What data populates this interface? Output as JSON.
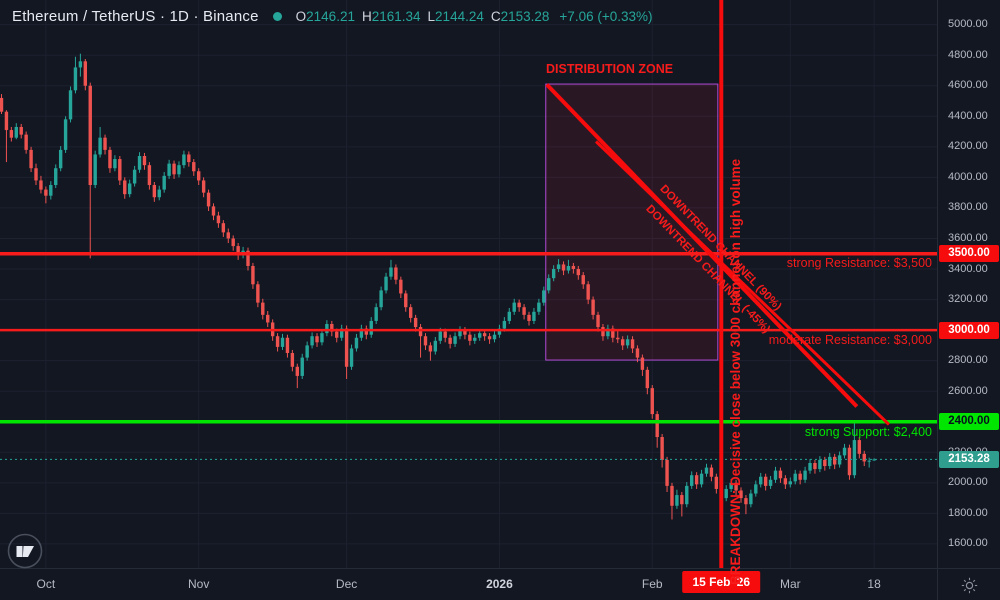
{
  "header": {
    "title": "Ethereum / TetherUS · 1D · Binance",
    "ohlc": [
      {
        "label": "O",
        "value": "2146.21"
      },
      {
        "label": "H",
        "value": "2161.34"
      },
      {
        "label": "L",
        "value": "2144.24"
      },
      {
        "label": "C",
        "value": "2153.28"
      }
    ],
    "change": "+7.06 (+0.33%)"
  },
  "colors": {
    "background": "#131722",
    "grid": "#1d2130",
    "axis_text": "#b6bac5",
    "candle_up": "#26a69a",
    "candle_down": "#ef5350",
    "annotation_red": "#f60c0c",
    "annotation_green": "#00e600",
    "zone_border": "#b24bd6",
    "zone_fill": "rgba(246,30,60,0.10)",
    "current_price_line": "#26a69a",
    "current_price_badge": "#2f9e8f"
  },
  "price_axis": {
    "ticks": [
      "5000.00",
      "4800.00",
      "4600.00",
      "4400.00",
      "4200.00",
      "4000.00",
      "3800.00",
      "3600.00",
      "3400.00",
      "3200.00",
      "3000.00",
      "2800.00",
      "2600.00",
      "2400.00",
      "2200.00",
      "2000.00",
      "1800.00",
      "1600.00"
    ],
    "tick_values": [
      5000,
      4800,
      4600,
      4400,
      4200,
      4000,
      3800,
      3600,
      3400,
      3200,
      3000,
      2800,
      2600,
      2400,
      2200,
      2000,
      1800,
      1600
    ],
    "badges": [
      {
        "text": "3500.00",
        "value": 3500,
        "bg": "#f60c0c",
        "fg": "#ffffff"
      },
      {
        "text": "3000.00",
        "value": 3000,
        "bg": "#f60c0c",
        "fg": "#ffffff"
      },
      {
        "text": "2400.00",
        "value": 2400,
        "bg": "#00e600",
        "fg": "#07101c"
      },
      {
        "text": "2153.28",
        "value": 2153.28,
        "bg": "#2f9e8f",
        "fg": "#ffffff"
      }
    ]
  },
  "time_axis": {
    "labels": [
      {
        "text": "Oct",
        "day_index": 9,
        "bold": false
      },
      {
        "text": "Nov",
        "day_index": 40,
        "bold": false
      },
      {
        "text": "Dec",
        "day_index": 70,
        "bold": false
      },
      {
        "text": "2026",
        "day_index": 101,
        "bold": true
      },
      {
        "text": "Feb",
        "day_index": 132,
        "bold": false
      },
      {
        "text": "Mar",
        "day_index": 160,
        "bold": false
      },
      {
        "text": "18",
        "day_index": 177,
        "bold": false
      }
    ],
    "date_badge": {
      "text": "15 Feb '26",
      "day_index": 146
    }
  },
  "corner": {
    "theme_icon": "sun-icon"
  },
  "annotations": {
    "zone_label": "DISTRIBUTION ZONE",
    "channel_labels": [
      "DOWNTREND CHANNEL (90%)",
      "DOWNTREND CHANNEL (-45%)"
    ],
    "breakdown_label": "BREAKDOWN: Decisive close below 3000 channel on high volume",
    "levels": [
      {
        "text": "strong Resistance: $3,500",
        "value": 3500,
        "color": "#f71b1b",
        "weight": 3.5
      },
      {
        "text": "moderate Resistance: $3,000",
        "value": 3000,
        "color": "#f71b1b",
        "weight": 2.5
      },
      {
        "text": "strong Support: $2,400",
        "value": 2400,
        "color": "#00e600",
        "weight": 3.5
      }
    ]
  },
  "chart_data": {
    "type": "candlestick",
    "title": "Ethereum / TetherUS · 1D · Binance",
    "symbol": "Ethereum / TetherUS",
    "interval": "1D",
    "exchange": "Binance",
    "ylim": [
      1460,
      5160
    ],
    "y_ticks": [
      1600,
      1800,
      2000,
      2200,
      2400,
      2600,
      2800,
      3000,
      3200,
      3400,
      3600,
      3800,
      4000,
      4200,
      4400,
      4600,
      4800,
      5000
    ],
    "x_labels": [
      "Oct",
      "Nov",
      "Dec",
      "2026",
      "Feb",
      "Mar",
      "18"
    ],
    "grid": true,
    "current_price": 2153.28,
    "levels": {
      "resistance_strong": 3500,
      "resistance_moderate": 3000,
      "support_strong": 2400
    },
    "vertical_event_line": {
      "label": "15 Feb '26",
      "day_index": 146
    },
    "zone": {
      "label": "DISTRIBUTION ZONE",
      "start_day": 110.4,
      "end_day": 145.3,
      "price_top": 4611,
      "price_bottom": 2804
    },
    "trendlines": [
      {
        "from_day": 110.6,
        "from_price": 4608,
        "to_day": 173.5,
        "to_price": 2500,
        "width": 4
      },
      {
        "from_day": 120.6,
        "from_price": 4235,
        "to_day": 180.0,
        "to_price": 2382,
        "width": 3
      }
    ],
    "candles": [
      [
        4520,
        4545,
        4415,
        4430
      ],
      [
        4430,
        4440,
        4100,
        4310
      ],
      [
        4310,
        4330,
        4235,
        4260
      ],
      [
        4260,
        4355,
        4250,
        4330
      ],
      [
        4330,
        4350,
        4255,
        4280
      ],
      [
        4280,
        4300,
        4155,
        4180
      ],
      [
        4180,
        4200,
        4035,
        4060
      ],
      [
        4060,
        4090,
        3950,
        3980
      ],
      [
        3980,
        4010,
        3895,
        3920
      ],
      [
        3920,
        3940,
        3830,
        3880
      ],
      [
        3880,
        3975,
        3855,
        3950
      ],
      [
        3950,
        4085,
        3930,
        4060
      ],
      [
        4060,
        4205,
        4040,
        4180
      ],
      [
        4180,
        4400,
        4160,
        4380
      ],
      [
        4380,
        4595,
        4360,
        4570
      ],
      [
        4570,
        4790,
        4550,
        4720
      ],
      [
        4720,
        4810,
        4660,
        4760
      ],
      [
        4760,
        4775,
        4570,
        4600
      ],
      [
        4600,
        4620,
        3470,
        3950
      ],
      [
        3950,
        4175,
        3930,
        4150
      ],
      [
        4150,
        4330,
        4130,
        4260
      ],
      [
        4260,
        4280,
        4150,
        4180
      ],
      [
        4180,
        4200,
        4030,
        4060
      ],
      [
        4060,
        4145,
        4040,
        4120
      ],
      [
        4120,
        4140,
        3950,
        3980
      ],
      [
        3980,
        4000,
        3860,
        3890
      ],
      [
        3890,
        3985,
        3870,
        3960
      ],
      [
        3960,
        4075,
        3940,
        4050
      ],
      [
        4050,
        4165,
        4030,
        4140
      ],
      [
        4140,
        4160,
        4050,
        4080
      ],
      [
        4080,
        4100,
        3920,
        3950
      ],
      [
        3950,
        3970,
        3840,
        3870
      ],
      [
        3870,
        3945,
        3850,
        3920
      ],
      [
        3920,
        4035,
        3900,
        4010
      ],
      [
        4010,
        4115,
        3990,
        4090
      ],
      [
        4090,
        4110,
        3990,
        4020
      ],
      [
        4020,
        4105,
        4000,
        4080
      ],
      [
        4080,
        4175,
        4060,
        4150
      ],
      [
        4150,
        4170,
        4070,
        4100
      ],
      [
        4100,
        4120,
        4010,
        4040
      ],
      [
        4040,
        4060,
        3950,
        3980
      ],
      [
        3980,
        4000,
        3870,
        3900
      ],
      [
        3900,
        3920,
        3780,
        3810
      ],
      [
        3810,
        3830,
        3720,
        3750
      ],
      [
        3750,
        3775,
        3670,
        3700
      ],
      [
        3700,
        3720,
        3610,
        3640
      ],
      [
        3640,
        3665,
        3570,
        3600
      ],
      [
        3600,
        3620,
        3520,
        3550
      ],
      [
        3550,
        3570,
        3460,
        3490
      ],
      [
        3490,
        3545,
        3470,
        3520
      ],
      [
        3520,
        3540,
        3390,
        3420
      ],
      [
        3420,
        3440,
        3270,
        3300
      ],
      [
        3300,
        3320,
        3150,
        3180
      ],
      [
        3180,
        3205,
        3070,
        3100
      ],
      [
        3100,
        3125,
        3020,
        3050
      ],
      [
        3050,
        3070,
        2930,
        2960
      ],
      [
        2960,
        2980,
        2860,
        2890
      ],
      [
        2890,
        2975,
        2870,
        2950
      ],
      [
        2950,
        2970,
        2820,
        2850
      ],
      [
        2850,
        2870,
        2730,
        2760
      ],
      [
        2760,
        2780,
        2620,
        2700
      ],
      [
        2700,
        2845,
        2680,
        2820
      ],
      [
        2820,
        2925,
        2800,
        2900
      ],
      [
        2900,
        2985,
        2880,
        2960
      ],
      [
        2960,
        2980,
        2890,
        2920
      ],
      [
        2920,
        3005,
        2900,
        2980
      ],
      [
        2980,
        3065,
        2960,
        3040
      ],
      [
        3040,
        3060,
        2960,
        2990
      ],
      [
        2990,
        3010,
        2920,
        2950
      ],
      [
        2950,
        3035,
        2930,
        3010
      ],
      [
        3010,
        3030,
        2680,
        2760
      ],
      [
        2760,
        2905,
        2740,
        2880
      ],
      [
        2880,
        2975,
        2860,
        2950
      ],
      [
        2950,
        3035,
        2930,
        3010
      ],
      [
        3010,
        3030,
        2940,
        2970
      ],
      [
        2970,
        3085,
        2950,
        3060
      ],
      [
        3060,
        3175,
        3040,
        3150
      ],
      [
        3150,
        3285,
        3130,
        3260
      ],
      [
        3260,
        3375,
        3240,
        3350
      ],
      [
        3350,
        3460,
        3330,
        3410
      ],
      [
        3410,
        3430,
        3300,
        3330
      ],
      [
        3330,
        3350,
        3210,
        3240
      ],
      [
        3240,
        3260,
        3120,
        3150
      ],
      [
        3150,
        3170,
        3050,
        3080
      ],
      [
        3080,
        3100,
        2990,
        3020
      ],
      [
        3020,
        3040,
        2820,
        2960
      ],
      [
        2960,
        2980,
        2870,
        2900
      ],
      [
        2900,
        2920,
        2800,
        2860
      ],
      [
        2860,
        2955,
        2840,
        2930
      ],
      [
        2930,
        3015,
        2910,
        2990
      ],
      [
        2990,
        3010,
        2920,
        2950
      ],
      [
        2950,
        2970,
        2880,
        2910
      ],
      [
        2910,
        2985,
        2890,
        2960
      ],
      [
        2960,
        3025,
        2940,
        3000
      ],
      [
        3000,
        3020,
        2940,
        2970
      ],
      [
        2970,
        2990,
        2900,
        2930
      ],
      [
        2930,
        2975,
        2910,
        2950
      ],
      [
        2950,
        3005,
        2930,
        2980
      ],
      [
        2980,
        3000,
        2930,
        2960
      ],
      [
        2960,
        2980,
        2910,
        2940
      ],
      [
        2940,
        2995,
        2920,
        2970
      ],
      [
        2970,
        3035,
        2950,
        3010
      ],
      [
        3010,
        3085,
        2990,
        3060
      ],
      [
        3060,
        3145,
        3040,
        3120
      ],
      [
        3120,
        3205,
        3100,
        3180
      ],
      [
        3180,
        3200,
        3120,
        3150
      ],
      [
        3150,
        3170,
        3070,
        3100
      ],
      [
        3100,
        3120,
        3030,
        3060
      ],
      [
        3060,
        3145,
        3040,
        3120
      ],
      [
        3120,
        3205,
        3100,
        3180
      ],
      [
        3180,
        3285,
        3160,
        3260
      ],
      [
        3260,
        3365,
        3240,
        3340
      ],
      [
        3340,
        3425,
        3320,
        3400
      ],
      [
        3400,
        3465,
        3380,
        3430
      ],
      [
        3430,
        3450,
        3360,
        3390
      ],
      [
        3390,
        3460,
        3370,
        3420
      ],
      [
        3420,
        3440,
        3370,
        3400
      ],
      [
        3400,
        3420,
        3330,
        3360
      ],
      [
        3360,
        3380,
        3270,
        3300
      ],
      [
        3300,
        3320,
        3170,
        3200
      ],
      [
        3200,
        3220,
        3070,
        3100
      ],
      [
        3100,
        3120,
        2990,
        3020
      ],
      [
        3020,
        3040,
        2930,
        2960
      ],
      [
        2960,
        3035,
        2940,
        3010
      ],
      [
        3010,
        3030,
        2920,
        2950
      ],
      [
        2950,
        2995,
        2915,
        2940
      ],
      [
        2940,
        2960,
        2870,
        2900
      ],
      [
        2900,
        2965,
        2880,
        2940
      ],
      [
        2940,
        2960,
        2850,
        2880
      ],
      [
        2880,
        2900,
        2790,
        2820
      ],
      [
        2820,
        2840,
        2700,
        2740
      ],
      [
        2740,
        2760,
        2580,
        2620
      ],
      [
        2620,
        2640,
        2420,
        2450
      ],
      [
        2450,
        2470,
        2230,
        2300
      ],
      [
        2300,
        2320,
        2100,
        2150
      ],
      [
        2150,
        2170,
        1940,
        1980
      ],
      [
        1980,
        2000,
        1760,
        1850
      ],
      [
        1850,
        1955,
        1830,
        1920
      ],
      [
        1920,
        1940,
        1780,
        1860
      ],
      [
        1860,
        2005,
        1840,
        1980
      ],
      [
        1980,
        2075,
        1960,
        2050
      ],
      [
        2050,
        2070,
        1960,
        1990
      ],
      [
        1990,
        2085,
        1970,
        2060
      ],
      [
        2060,
        2125,
        2040,
        2100
      ],
      [
        2100,
        2120,
        2010,
        2040
      ],
      [
        2040,
        2060,
        1930,
        1960
      ],
      [
        1960,
        1980,
        1830,
        1900
      ],
      [
        1900,
        1985,
        1880,
        1960
      ],
      [
        1960,
        2025,
        1940,
        2000
      ],
      [
        2000,
        2020,
        1920,
        1950
      ],
      [
        1950,
        1970,
        1870,
        1900
      ],
      [
        1900,
        1920,
        1795,
        1860
      ],
      [
        1860,
        1955,
        1840,
        1930
      ],
      [
        1930,
        2015,
        1910,
        1990
      ],
      [
        1990,
        2065,
        1970,
        2040
      ],
      [
        2040,
        2060,
        1950,
        1980
      ],
      [
        1980,
        2045,
        1960,
        2020
      ],
      [
        2020,
        2105,
        2000,
        2080
      ],
      [
        2080,
        2100,
        2000,
        2030
      ],
      [
        2030,
        2050,
        1960,
        1990
      ],
      [
        1990,
        2035,
        1970,
        2010
      ],
      [
        2010,
        2085,
        1990,
        2060
      ],
      [
        2060,
        2080,
        1990,
        2020
      ],
      [
        2020,
        2105,
        2000,
        2080
      ],
      [
        2080,
        2155,
        2060,
        2130
      ],
      [
        2130,
        2150,
        2060,
        2090
      ],
      [
        2090,
        2175,
        2070,
        2150
      ],
      [
        2150,
        2170,
        2080,
        2110
      ],
      [
        2110,
        2195,
        2090,
        2170
      ],
      [
        2170,
        2190,
        2090,
        2120
      ],
      [
        2120,
        2205,
        2100,
        2180
      ],
      [
        2180,
        2255,
        2160,
        2230
      ],
      [
        2230,
        2250,
        2020,
        2050
      ],
      [
        2050,
        2395,
        2030,
        2280
      ],
      [
        2280,
        2300,
        2160,
        2190
      ],
      [
        2190,
        2210,
        2110,
        2140
      ],
      [
        2140,
        2165,
        2100,
        2145
      ],
      [
        2146.21,
        2161.34,
        2144.24,
        2153.28
      ]
    ]
  }
}
